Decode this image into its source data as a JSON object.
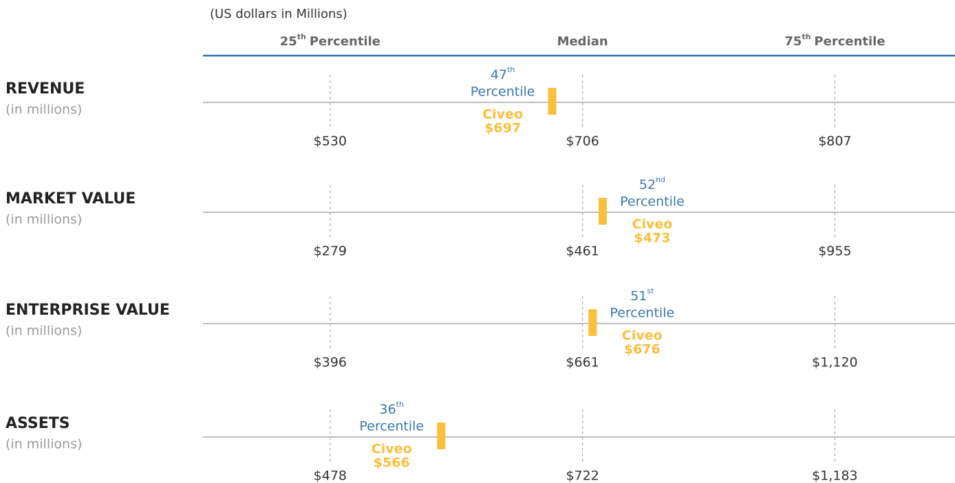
{
  "chart_data": {
    "type": "percentile-strip",
    "unit_note": "(US dollars in Millions)",
    "headers": [
      {
        "number": "25",
        "suffix": "th",
        "label": "Percentile"
      },
      {
        "label": "Median"
      },
      {
        "number": "75",
        "suffix": "th",
        "label": "Percentile"
      }
    ],
    "xlim": [
      12.4,
      86.9
    ],
    "xticks": [
      25,
      50,
      75
    ],
    "row_subtitle": "(in millions)",
    "company": "Civeo",
    "rank_word": "Percentile",
    "marker_color": "#fbbf3c",
    "rows": [
      {
        "name": "REVENUE",
        "ticks": [
          "$530",
          "$706",
          "$807"
        ],
        "company_value": "$697",
        "percentile": 47,
        "suffix": "th",
        "label_side": "left"
      },
      {
        "name": "MARKET VALUE",
        "ticks": [
          "$279",
          "$461",
          "$955"
        ],
        "company_value": "$473",
        "percentile": 52,
        "suffix": "nd",
        "label_side": "right"
      },
      {
        "name": "ENTERPRISE VALUE",
        "ticks": [
          "$396",
          "$661",
          "$1,120"
        ],
        "company_value": "$676",
        "percentile": 51,
        "suffix": "st",
        "label_side": "right"
      },
      {
        "name": "ASSETS",
        "ticks": [
          "$478",
          "$722",
          "$1,183"
        ],
        "company_value": "$566",
        "percentile": 36,
        "suffix": "th",
        "label_side": "left"
      }
    ]
  }
}
